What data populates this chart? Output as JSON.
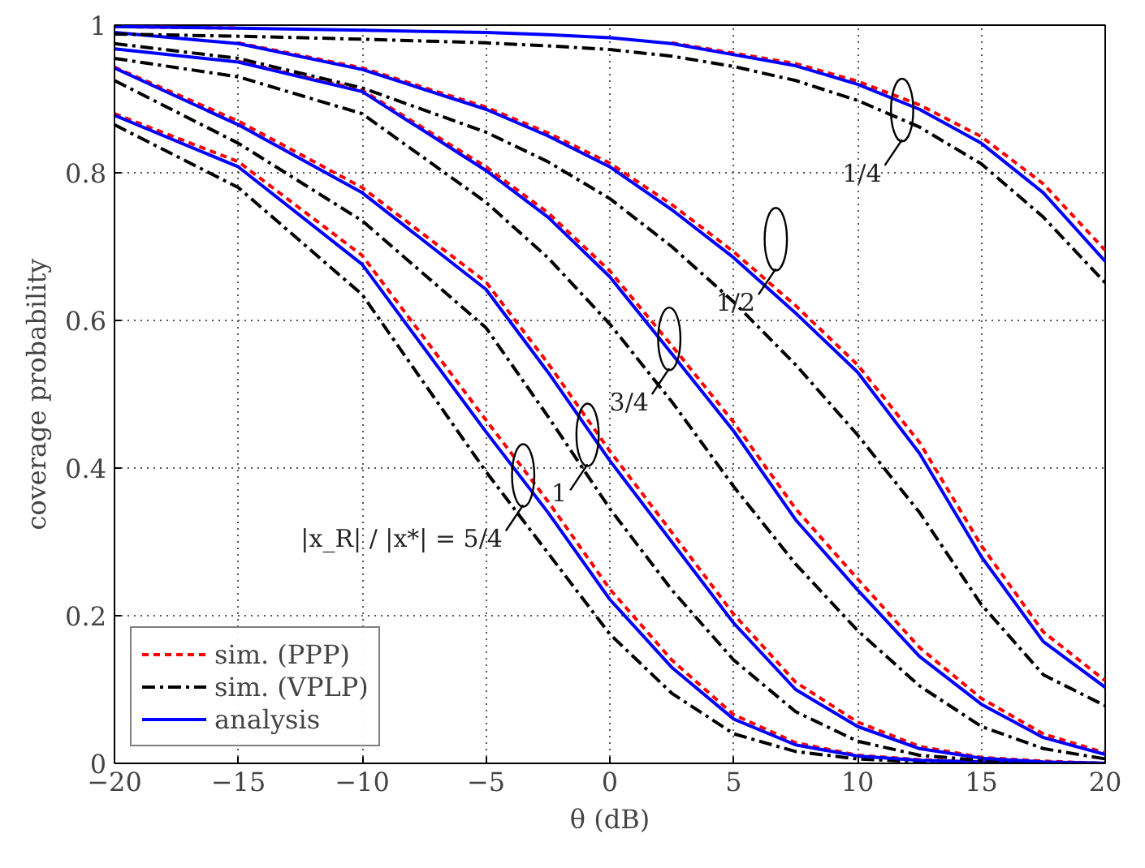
{
  "chart_data": {
    "type": "line",
    "xlabel": "θ (dB)",
    "ylabel": "coverage probability",
    "x": [
      -20,
      -15,
      -10,
      -5,
      -2.5,
      0,
      2.5,
      5,
      7.5,
      10,
      12.5,
      15,
      17.5,
      20
    ],
    "xlim": [
      -20,
      20
    ],
    "ylim": [
      0,
      1
    ],
    "xticks": [
      -20,
      -15,
      -10,
      -5,
      0,
      5,
      10,
      15,
      20
    ],
    "yticks": [
      0,
      0.2,
      0.4,
      0.6,
      0.8,
      1
    ],
    "grid": true,
    "legend": "bottom left",
    "marker": "none",
    "series": [
      {
        "name": "sim. (PPP)",
        "color": "#ff0000",
        "line_style": "dashed",
        "values": [
          0.88,
          0.815,
          0.688,
          0.465,
          0.355,
          0.236,
          0.14,
          0.066,
          0.028,
          0.011,
          0.005,
          0.002,
          0.001,
          0
        ]
      },
      {
        "name": "sim. (VPLP)",
        "color": "#000000",
        "line_style": "dashdot",
        "values": [
          0.865,
          0.78,
          0.635,
          0.395,
          0.285,
          0.175,
          0.095,
          0.04,
          0.016,
          0.006,
          0.002,
          0.001,
          0,
          0
        ]
      },
      {
        "name": "analysis",
        "color": "#0000ff",
        "line_style": "solid",
        "values": [
          0.878,
          0.808,
          0.676,
          0.449,
          0.34,
          0.222,
          0.13,
          0.06,
          0.025,
          0.01,
          0.004,
          0.002,
          0.001,
          0
        ]
      },
      {
        "color": "#ff0000",
        "line_style": "dashed",
        "values": [
          0.943,
          0.87,
          0.78,
          0.652,
          0.542,
          0.423,
          0.313,
          0.202,
          0.11,
          0.056,
          0.023,
          0.008,
          0.003,
          0
        ]
      },
      {
        "color": "#000000",
        "line_style": "dashdot",
        "values": [
          0.925,
          0.84,
          0.735,
          0.59,
          0.47,
          0.345,
          0.235,
          0.14,
          0.07,
          0.03,
          0.011,
          0.004,
          0.001,
          0
        ]
      },
      {
        "color": "#0000ff",
        "line_style": "solid",
        "values": [
          0.942,
          0.865,
          0.773,
          0.642,
          0.53,
          0.41,
          0.3,
          0.19,
          0.1,
          0.05,
          0.02,
          0.007,
          0.002,
          0
        ]
      },
      {
        "color": "#ff0000",
        "line_style": "dashed",
        "values": [
          null,
          0.951,
          0.912,
          0.808,
          0.746,
          0.667,
          0.566,
          0.462,
          0.345,
          0.25,
          0.157,
          0.088,
          0.04,
          0.014
        ]
      },
      {
        "color": "#000000",
        "line_style": "dashdot",
        "values": [
          0.955,
          0.93,
          0.88,
          0.76,
          0.685,
          0.595,
          0.49,
          0.375,
          0.27,
          0.18,
          0.105,
          0.05,
          0.02,
          0.006
        ]
      },
      {
        "color": "#0000ff",
        "line_style": "solid",
        "values": [
          0.968,
          0.95,
          0.91,
          0.803,
          0.74,
          0.659,
          0.555,
          0.45,
          0.33,
          0.235,
          0.145,
          0.08,
          0.035,
          0.012
        ]
      },
      {
        "color": "#ff0000",
        "line_style": "dashed",
        "values": [
          null,
          0.976,
          0.942,
          0.889,
          0.854,
          0.813,
          0.757,
          0.693,
          0.62,
          0.54,
          0.435,
          0.295,
          0.178,
          0.112
        ]
      },
      {
        "color": "#000000",
        "line_style": "dashdot",
        "values": [
          0.975,
          0.955,
          0.915,
          0.855,
          0.815,
          0.765,
          0.7,
          0.625,
          0.54,
          0.445,
          0.34,
          0.215,
          0.12,
          0.078
        ]
      },
      {
        "color": "#0000ff",
        "line_style": "solid",
        "values": [
          0.99,
          0.975,
          0.94,
          0.886,
          0.85,
          0.808,
          0.75,
          0.685,
          0.61,
          0.53,
          0.42,
          0.28,
          0.165,
          0.103
        ]
      },
      {
        "color": "#ff0000",
        "line_style": "dashed",
        "values": [
          0.998,
          0.996,
          null,
          null,
          null,
          null,
          0.976,
          0.962,
          0.948,
          0.924,
          0.892,
          0.849,
          0.785,
          0.695
        ]
      },
      {
        "color": "#000000",
        "line_style": "dashdot",
        "values": [
          0.988,
          0.985,
          0.981,
          0.976,
          0.972,
          0.967,
          0.958,
          0.944,
          0.925,
          0.898,
          0.862,
          0.812,
          0.74,
          0.651
        ]
      },
      {
        "color": "#0000ff",
        "line_style": "solid",
        "values": [
          0.998,
          0.996,
          0.993,
          0.99,
          0.987,
          0.983,
          0.975,
          0.96,
          0.945,
          0.92,
          0.886,
          0.84,
          0.773,
          0.68
        ]
      }
    ],
    "annotations": [
      {
        "text": "1/4",
        "x": 11.8,
        "y": 0.885
      },
      {
        "text": "1/2",
        "x": 6.7,
        "y": 0.71
      },
      {
        "text": "3/4",
        "x": 2.4,
        "y": 0.575
      },
      {
        "text": "1",
        "x": -0.9,
        "y": 0.445
      },
      {
        "text": "|x_R| / |x*| = 5/4",
        "x": -3.5,
        "y": 0.39
      }
    ]
  }
}
